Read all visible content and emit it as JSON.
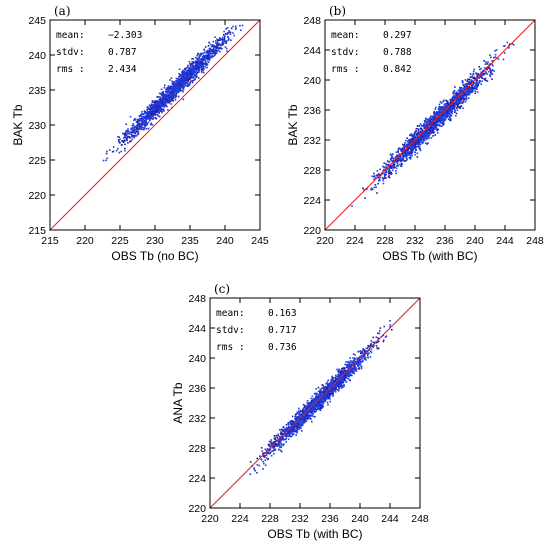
{
  "colors": {
    "points": "#1f3fe0",
    "points_dark": "#2a1a9a",
    "diagonal": "#e02020",
    "frame": "#000000"
  },
  "chart_data": [
    {
      "type": "scatter",
      "panel_label": "(a)",
      "xlabel": "OBS Tb (no BC)",
      "ylabel": "BAK Tb",
      "xlim": [
        215,
        245
      ],
      "ylim": [
        215,
        245
      ],
      "xticks": [
        215,
        220,
        225,
        230,
        235,
        240,
        245
      ],
      "yticks": [
        215,
        220,
        225,
        230,
        235,
        240,
        245
      ],
      "diagonal": "1:1",
      "point_range_x": [
        220.5,
        243.8
      ],
      "bias": -2.303,
      "spread": 0.787,
      "stats": [
        {
          "name": "mean:",
          "value": "−2.303"
        },
        {
          "name": "stdv:",
          "value": "0.787"
        },
        {
          "name": "rms :",
          "value": "2.434"
        }
      ]
    },
    {
      "type": "scatter",
      "panel_label": "(b)",
      "xlabel": "OBS Tb (with BC)",
      "ylabel": "BAK Tb",
      "xlim": [
        220,
        248
      ],
      "ylim": [
        220,
        248
      ],
      "xticks": [
        220,
        224,
        228,
        232,
        236,
        240,
        244,
        248
      ],
      "yticks": [
        220,
        224,
        228,
        232,
        236,
        240,
        244,
        248
      ],
      "diagonal": "1:1",
      "point_range_x": [
        222.5,
        245.8
      ],
      "bias": 0.297,
      "spread": 0.788,
      "stats": [
        {
          "name": "mean:",
          "value": "0.297"
        },
        {
          "name": "stdv:",
          "value": "0.788"
        },
        {
          "name": "rms :",
          "value": "0.842"
        }
      ]
    },
    {
      "type": "scatter",
      "panel_label": "(c)",
      "xlabel": "OBS Tb (with BC)",
      "ylabel": "ANA Tb",
      "xlim": [
        220,
        248
      ],
      "ylim": [
        220,
        248
      ],
      "xticks": [
        220,
        224,
        228,
        232,
        236,
        240,
        244,
        248
      ],
      "yticks": [
        220,
        224,
        228,
        232,
        236,
        240,
        244,
        248
      ],
      "diagonal": "1:1",
      "point_range_x": [
        222.5,
        245.8
      ],
      "bias": 0.163,
      "spread": 0.717,
      "stats": [
        {
          "name": "mean:",
          "value": "0.163"
        },
        {
          "name": "stdv:",
          "value": "0.717"
        },
        {
          "name": "rms :",
          "value": "0.736"
        }
      ]
    }
  ]
}
